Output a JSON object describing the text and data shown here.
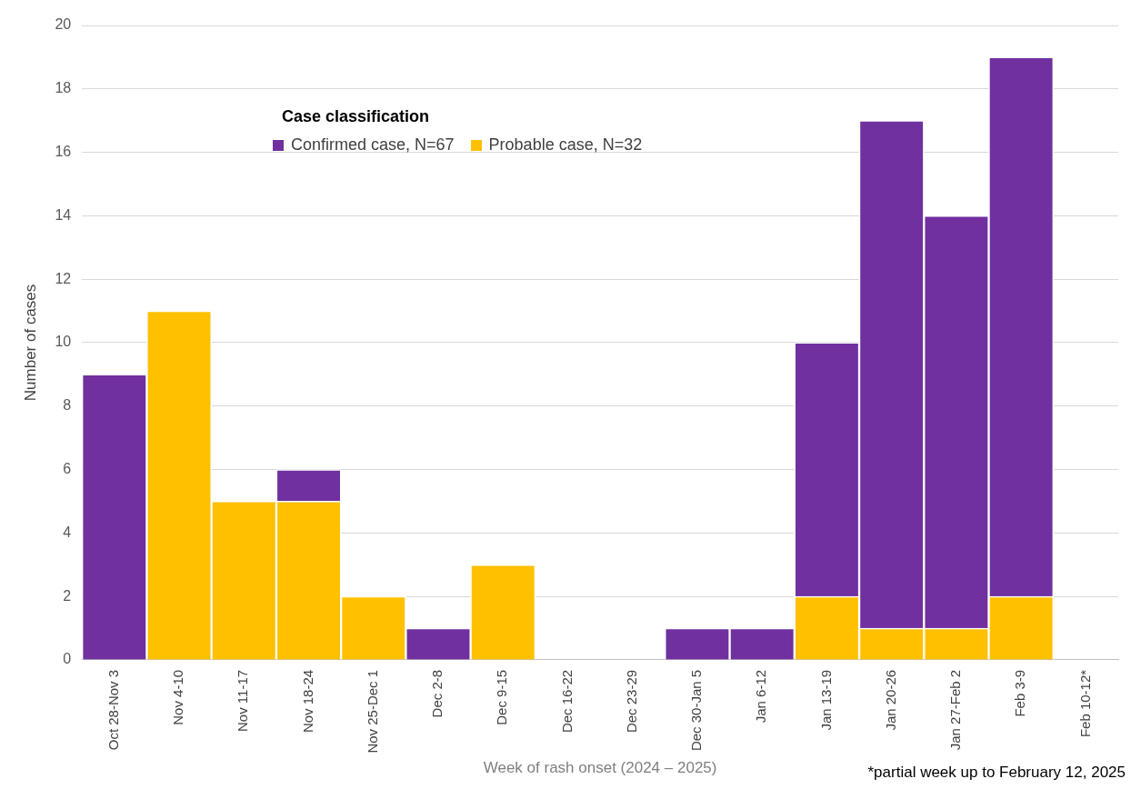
{
  "chart_data": {
    "type": "bar",
    "stacked": true,
    "categories": [
      "Oct 28-Nov 3",
      "Nov 4-10",
      "Nov 11-17",
      "Nov 18-24",
      "Nov 25-Dec 1",
      "Dec 2-8",
      "Dec 9-15",
      "Dec 16-22",
      "Dec 23-29",
      "Dec 30-Jan 5",
      "Jan 6-12",
      "Jan 13-19",
      "Jan 20-26",
      "Jan 27-Feb 2",
      "Feb 3-9",
      "Feb 10-12*"
    ],
    "series": [
      {
        "name": "Probable case, N=32",
        "color": "#ffc000",
        "values": [
          0,
          11,
          5,
          5,
          2,
          0,
          3,
          0,
          0,
          0,
          0,
          2,
          1,
          1,
          2,
          0
        ]
      },
      {
        "name": "Confirmed case, N=67",
        "color": "#7030a0",
        "values": [
          9,
          0,
          0,
          1,
          0,
          1,
          0,
          0,
          0,
          1,
          1,
          8,
          16,
          13,
          17,
          0
        ]
      }
    ],
    "ylim": [
      0,
      20
    ],
    "yticks": [
      0,
      2,
      4,
      6,
      8,
      10,
      12,
      14,
      16,
      18,
      20
    ],
    "xlabel": "Week of rash onset (2024 – 2025)",
    "ylabel": "Number of cases",
    "legend_title": "Case classification",
    "legend": "top",
    "grid": "y",
    "annotations": [
      "*partial week up to February 12, 2025"
    ]
  }
}
